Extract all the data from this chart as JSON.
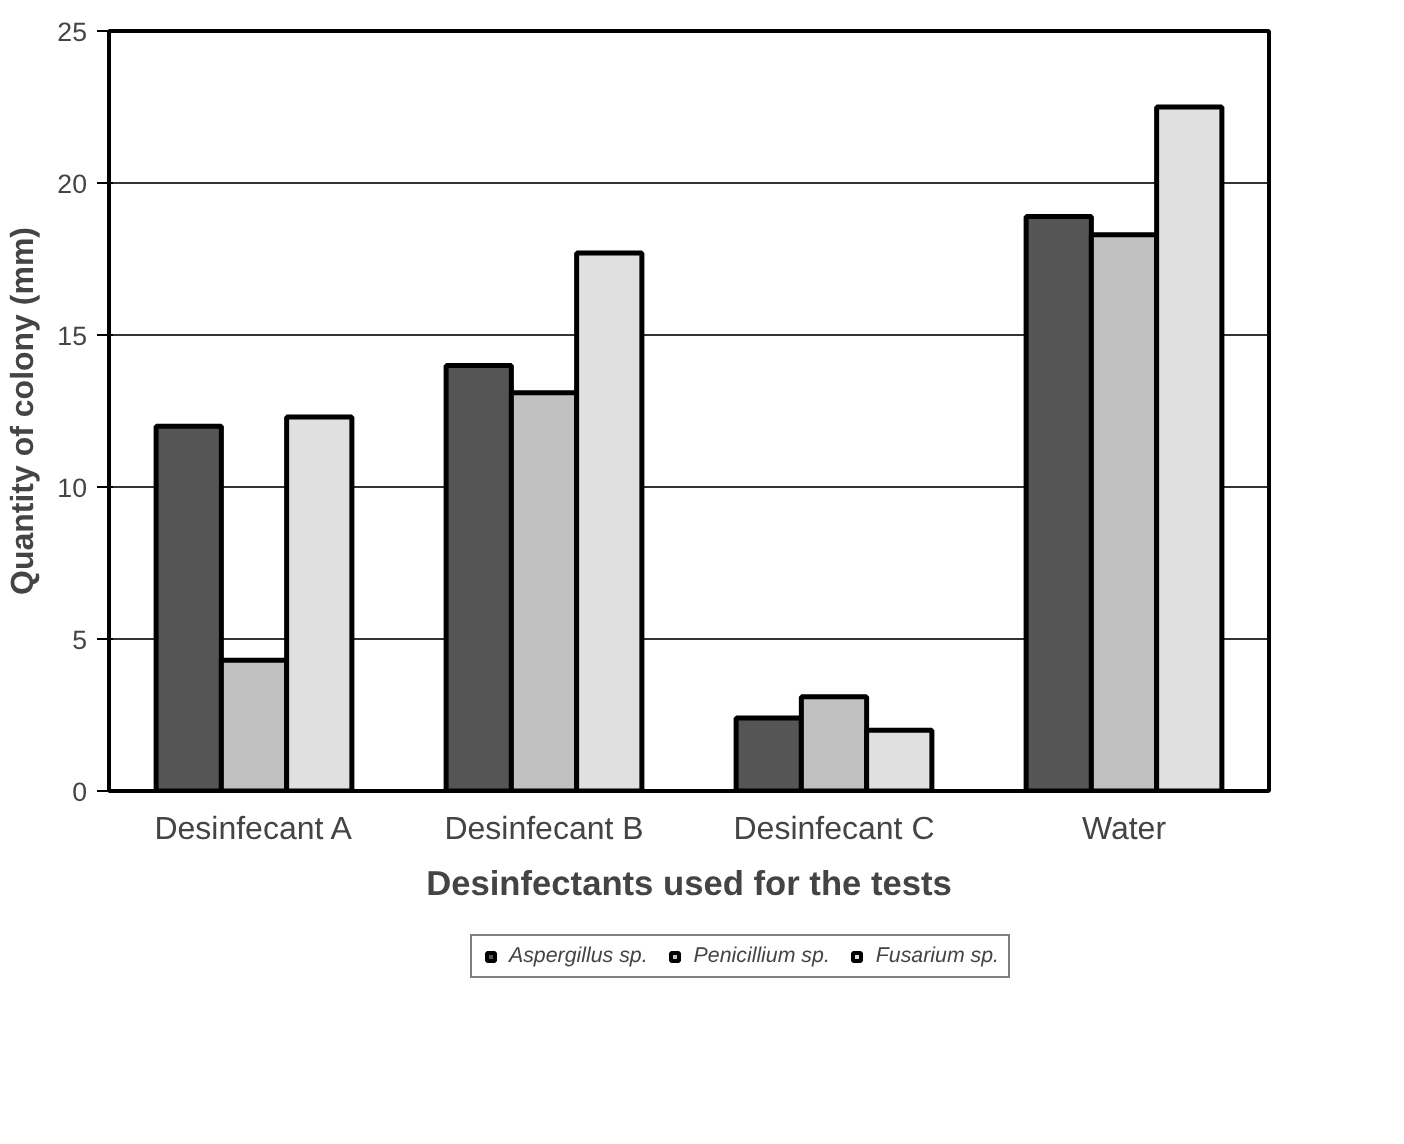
{
  "chart_data": {
    "type": "bar",
    "categories": [
      "Desinfecant A",
      "Desinfecant B",
      "Desinfecant C",
      "Water"
    ],
    "xlabel": "Desinfectants used for the tests",
    "ylabel": "Quantity of colony (mm)",
    "series": [
      {
        "name": "Aspergillus sp.",
        "color": "#555555",
        "values": [
          12.0,
          14.0,
          2.4,
          18.9
        ]
      },
      {
        "name": "Penicillium sp.",
        "color": "#c0c0c0",
        "values": [
          4.3,
          13.1,
          3.1,
          18.3
        ]
      },
      {
        "name": "Fusarium sp.",
        "color": "#e0e0e0",
        "values": [
          12.3,
          17.7,
          2.0,
          22.5
        ]
      }
    ],
    "ylim": [
      0,
      25
    ],
    "yticks": [
      0,
      5,
      10,
      15,
      20,
      25
    ],
    "grid": "y",
    "legend": "bottom"
  }
}
